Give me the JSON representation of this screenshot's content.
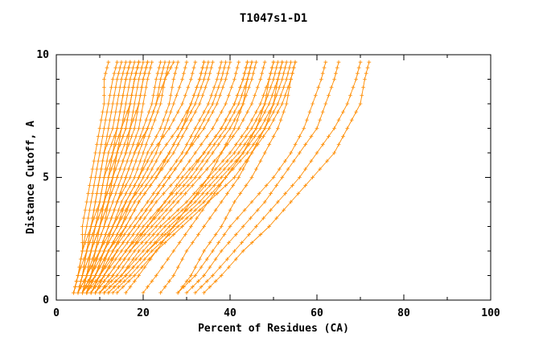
{
  "chart_data": {
    "type": "line",
    "title": "T1047s1-D1",
    "xlabel": "Percent of Residues (CA)",
    "ylabel": "Distance Cutoff, A",
    "xlim": [
      0,
      100
    ],
    "ylim": [
      0,
      10
    ],
    "x_ticks": [
      0,
      20,
      40,
      60,
      80,
      100
    ],
    "x_minor_ticks": [
      10,
      30,
      50,
      70,
      90
    ],
    "y_ticks": [
      0,
      5,
      10
    ],
    "y_minor_ticks": [
      1,
      2,
      3,
      4,
      6,
      7,
      8,
      9
    ],
    "grid": "off",
    "legend": "none",
    "line_color": "#FF8C00",
    "marker": "plus",
    "y_samples": [
      0.3,
      1,
      2,
      3,
      4,
      5,
      6,
      7,
      8,
      9,
      9.7
    ],
    "series_x": [
      [
        4,
        5,
        6,
        6,
        7,
        8,
        9,
        10,
        11,
        11,
        12
      ],
      [
        4,
        5,
        6,
        7,
        8,
        9,
        10,
        11,
        12,
        13,
        14
      ],
      [
        5,
        6,
        7,
        8,
        9,
        10,
        11,
        12,
        13,
        14,
        15
      ],
      [
        4,
        5,
        6,
        8,
        9,
        10,
        11,
        13,
        14,
        15,
        16
      ],
      [
        5,
        6,
        7,
        9,
        10,
        11,
        13,
        14,
        15,
        16,
        17
      ],
      [
        5,
        6,
        8,
        9,
        11,
        12,
        13,
        15,
        16,
        17,
        18
      ],
      [
        6,
        7,
        8,
        10,
        11,
        13,
        14,
        16,
        17,
        18,
        19
      ],
      [
        5,
        6,
        8,
        10,
        12,
        13,
        15,
        17,
        18,
        19,
        20
      ],
      [
        6,
        7,
        9,
        11,
        12,
        14,
        16,
        18,
        19,
        20,
        21
      ],
      [
        6,
        8,
        9,
        11,
        13,
        15,
        17,
        19,
        20,
        21,
        22
      ],
      [
        7,
        8,
        10,
        12,
        14,
        16,
        18,
        20,
        22,
        23,
        24
      ],
      [
        6,
        8,
        10,
        12,
        14,
        17,
        19,
        21,
        23,
        24,
        25
      ],
      [
        7,
        9,
        11,
        13,
        15,
        18,
        20,
        22,
        24,
        25,
        26
      ],
      [
        7,
        9,
        11,
        14,
        16,
        19,
        21,
        24,
        26,
        27,
        28
      ],
      [
        8,
        10,
        12,
        15,
        17,
        20,
        23,
        25,
        27,
        29,
        30
      ],
      [
        5,
        7,
        10,
        13,
        16,
        19,
        22,
        26,
        29,
        31,
        32
      ],
      [
        6,
        8,
        11,
        14,
        17,
        21,
        24,
        28,
        31,
        33,
        34
      ],
      [
        6,
        9,
        12,
        15,
        18,
        22,
        26,
        29,
        32,
        34,
        35
      ],
      [
        7,
        9,
        12,
        16,
        19,
        23,
        27,
        30,
        33,
        35,
        36
      ],
      [
        7,
        10,
        13,
        17,
        21,
        25,
        29,
        32,
        35,
        37,
        38
      ],
      [
        8,
        10,
        14,
        18,
        22,
        26,
        30,
        34,
        37,
        39,
        40
      ],
      [
        8,
        11,
        15,
        19,
        23,
        28,
        32,
        36,
        39,
        41,
        42
      ],
      [
        9,
        12,
        16,
        20,
        25,
        29,
        34,
        38,
        41,
        43,
        44
      ],
      [
        9,
        12,
        16,
        21,
        26,
        31,
        35,
        39,
        42,
        44,
        45
      ],
      [
        10,
        13,
        17,
        22,
        27,
        32,
        36,
        40,
        43,
        45,
        46
      ],
      [
        10,
        14,
        18,
        23,
        28,
        33,
        38,
        42,
        45,
        47,
        48
      ],
      [
        11,
        15,
        19,
        24,
        30,
        35,
        40,
        44,
        47,
        49,
        50
      ],
      [
        11,
        15,
        20,
        25,
        31,
        36,
        41,
        45,
        48,
        50,
        51
      ],
      [
        12,
        16,
        21,
        26,
        32,
        37,
        42,
        46,
        49,
        51,
        52
      ],
      [
        12,
        16,
        21,
        27,
        33,
        38,
        43,
        47,
        50,
        52,
        53
      ],
      [
        13,
        17,
        22,
        28,
        34,
        39,
        44,
        48,
        51,
        53,
        54
      ],
      [
        14,
        18,
        23,
        29,
        35,
        41,
        45,
        49,
        52,
        54,
        55
      ],
      [
        16,
        19,
        23,
        27,
        31,
        35,
        38,
        41,
        43,
        44,
        45
      ],
      [
        20,
        23,
        27,
        31,
        35,
        39,
        43,
        46,
        48,
        49,
        50
      ],
      [
        24,
        27,
        30,
        34,
        38,
        42,
        45,
        48,
        50,
        51,
        52
      ],
      [
        28,
        31,
        34,
        38,
        41,
        45,
        48,
        51,
        53,
        54,
        55
      ],
      [
        28,
        32,
        36,
        40,
        45,
        50,
        54,
        57,
        59,
        61,
        62
      ],
      [
        30,
        34,
        38,
        43,
        48,
        52,
        56,
        60,
        62,
        64,
        65
      ],
      [
        32,
        36,
        41,
        46,
        51,
        56,
        60,
        64,
        67,
        69,
        70
      ],
      [
        34,
        38,
        43,
        49,
        54,
        59,
        64,
        67,
        70,
        71,
        72
      ],
      [
        4,
        5,
        7,
        8,
        10,
        11,
        12,
        14,
        15,
        16,
        17
      ],
      [
        5,
        7,
        8,
        10,
        11,
        13,
        14,
        16,
        17,
        18,
        19
      ],
      [
        6,
        7,
        9,
        10,
        12,
        14,
        16,
        17,
        19,
        20,
        21
      ],
      [
        5,
        6,
        7,
        9,
        11,
        12,
        14,
        15,
        17,
        18,
        19
      ],
      [
        7,
        8,
        10,
        12,
        14,
        16,
        18,
        21,
        23,
        25,
        27
      ],
      [
        8,
        10,
        13,
        16,
        19,
        23,
        26,
        29,
        31,
        33,
        34
      ],
      [
        9,
        11,
        14,
        18,
        22,
        26,
        30,
        33,
        36,
        38,
        39
      ],
      [
        10,
        13,
        17,
        21,
        25,
        30,
        34,
        38,
        41,
        43,
        44
      ]
    ]
  }
}
